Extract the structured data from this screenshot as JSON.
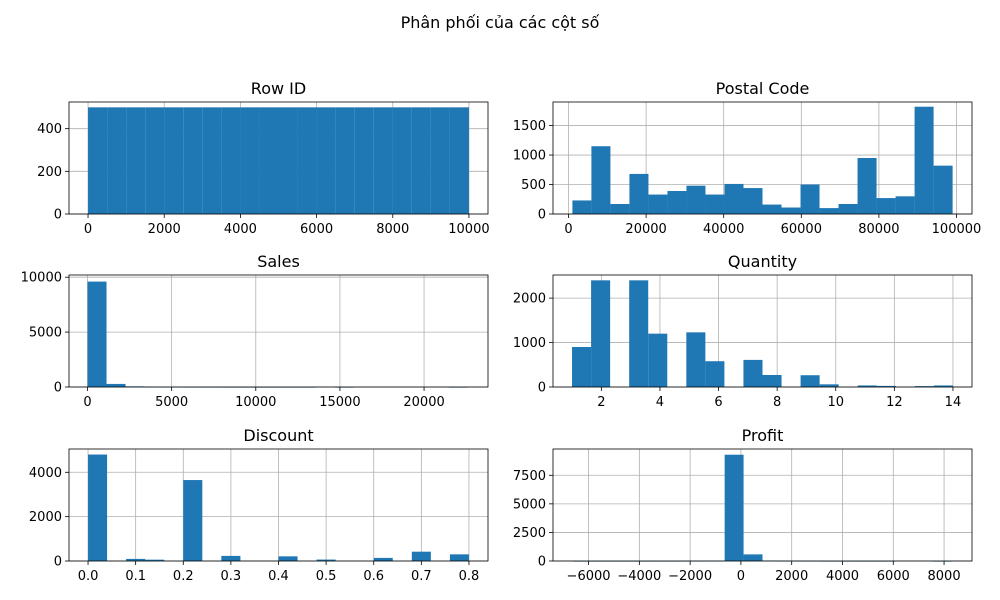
{
  "figure": {
    "title": "Phân phối của các cột số"
  },
  "chart_data": [
    {
      "type": "bar",
      "title": "Row ID",
      "color": "#1f77b4",
      "grid": true,
      "xlim": [
        -500,
        10500
      ],
      "ylim": [
        0,
        525
      ],
      "xticks": [
        0,
        2000,
        4000,
        6000,
        8000,
        10000
      ],
      "yticks": [
        0,
        200,
        400
      ],
      "tick_labels_x": [
        "0",
        "2000",
        "4000",
        "6000",
        "8000",
        "10000"
      ],
      "tick_labels_y": [
        "0",
        "200",
        "400"
      ],
      "bins": [
        0,
        500,
        1000,
        1500,
        2000,
        2500,
        3000,
        3500,
        4000,
        4500,
        5000,
        5500,
        6000,
        6500,
        7000,
        7500,
        8000,
        8500,
        9000,
        9500,
        10000
      ],
      "counts": [
        500,
        500,
        500,
        500,
        500,
        500,
        500,
        500,
        500,
        500,
        500,
        500,
        500,
        500,
        500,
        500,
        500,
        500,
        500,
        500
      ]
    },
    {
      "type": "bar",
      "title": "Postal Code",
      "color": "#1f77b4",
      "grid": true,
      "xlim": [
        -4000,
        104000
      ],
      "ylim": [
        0,
        1900
      ],
      "xticks": [
        0,
        20000,
        40000,
        60000,
        80000,
        100000
      ],
      "yticks": [
        0,
        500,
        1000,
        1500
      ],
      "tick_labels_x": [
        "0",
        "20000",
        "40000",
        "60000",
        "80000",
        "100000"
      ],
      "tick_labels_y": [
        "0",
        "500",
        "1000",
        "1500"
      ],
      "bins": [
        1000,
        5900,
        10800,
        15700,
        20600,
        25500,
        30400,
        35300,
        40200,
        45100,
        50000,
        54900,
        59800,
        64700,
        69600,
        74500,
        79400,
        84300,
        89200,
        94100,
        99000
      ],
      "counts": [
        230,
        1150,
        170,
        680,
        330,
        390,
        480,
        330,
        510,
        440,
        160,
        110,
        500,
        100,
        170,
        950,
        270,
        300,
        1820,
        820
      ]
    },
    {
      "type": "bar",
      "title": "Sales",
      "color": "#1f77b4",
      "grid": true,
      "xlim": [
        -1100,
        23800
      ],
      "ylim": [
        0,
        10200
      ],
      "xticks": [
        0,
        5000,
        10000,
        15000,
        20000
      ],
      "yticks": [
        0,
        5000,
        10000
      ],
      "tick_labels_x": [
        "0",
        "5000",
        "10000",
        "15000",
        "20000"
      ],
      "tick_labels_y": [
        "0",
        "5000",
        "10000"
      ],
      "bins": [
        0,
        1130,
        2260,
        3390,
        4520,
        5650,
        6780,
        7910,
        9040,
        10170,
        11300,
        12430,
        13560,
        14690,
        15820,
        16950,
        18080,
        19210,
        20340,
        21470,
        22600
      ],
      "counts": [
        9600,
        280,
        60,
        20,
        10,
        6,
        4,
        2,
        2,
        1,
        1,
        1,
        0,
        1,
        0,
        0,
        0,
        0,
        0,
        1
      ]
    },
    {
      "type": "bar",
      "title": "Quantity",
      "color": "#1f77b4",
      "grid": true,
      "xlim": [
        0.35,
        14.65
      ],
      "ylim": [
        0,
        2520
      ],
      "xticks": [
        2,
        4,
        6,
        8,
        10,
        12,
        14
      ],
      "yticks": [
        0,
        1000,
        2000
      ],
      "tick_labels_x": [
        "2",
        "4",
        "6",
        "8",
        "10",
        "12",
        "14"
      ],
      "tick_labels_y": [
        "0",
        "1000",
        "2000"
      ],
      "bins": [
        1,
        1.65,
        2.3,
        2.95,
        3.6,
        4.25,
        4.9,
        5.55,
        6.2,
        6.85,
        7.5,
        8.15,
        8.8,
        9.45,
        10.1,
        10.75,
        11.4,
        12.05,
        12.7,
        13.35,
        14
      ],
      "counts": [
        900,
        2400,
        0,
        2400,
        1200,
        0,
        1230,
        580,
        0,
        610,
        270,
        0,
        265,
        60,
        0,
        35,
        25,
        0,
        20,
        35
      ]
    },
    {
      "type": "bar",
      "title": "Discount",
      "color": "#1f77b4",
      "grid": true,
      "xlim": [
        -0.04,
        0.84
      ],
      "ylim": [
        0,
        5050
      ],
      "xticks": [
        0.0,
        0.1,
        0.2,
        0.3,
        0.4,
        0.5,
        0.6,
        0.7,
        0.8
      ],
      "yticks": [
        0,
        2000,
        4000
      ],
      "tick_labels_x": [
        "0.0",
        "0.1",
        "0.2",
        "0.3",
        "0.4",
        "0.5",
        "0.6",
        "0.7",
        "0.8"
      ],
      "tick_labels_y": [
        "0",
        "2000",
        "4000"
      ],
      "bins": [
        0,
        0.04,
        0.08,
        0.12,
        0.16,
        0.2,
        0.24,
        0.28,
        0.32,
        0.36,
        0.4,
        0.44,
        0.48,
        0.52,
        0.56,
        0.6,
        0.64,
        0.68,
        0.72,
        0.76,
        0.8
      ],
      "counts": [
        4800,
        0,
        95,
        60,
        0,
        3650,
        0,
        230,
        0,
        0,
        210,
        0,
        65,
        0,
        0,
        140,
        0,
        420,
        0,
        300
      ]
    },
    {
      "type": "bar",
      "title": "Profit",
      "color": "#1f77b4",
      "grid": true,
      "xlim": [
        -7400,
        9100
      ],
      "ylim": [
        0,
        9800
      ],
      "xticks": [
        -6000,
        -4000,
        -2000,
        0,
        2000,
        4000,
        6000,
        8000
      ],
      "yticks": [
        0,
        2500,
        5000,
        7500
      ],
      "tick_labels_x": [
        "−6000",
        "−4000",
        "−2000",
        "0",
        "2000",
        "4000",
        "6000",
        "8000"
      ],
      "tick_labels_y": [
        "0",
        "2500",
        "5000",
        "7500"
      ],
      "bins": [
        -6600,
        -5855,
        -5110,
        -4365,
        -3620,
        -2875,
        -2130,
        -1385,
        -640,
        105,
        850,
        1595,
        2340,
        3085,
        3830,
        4575,
        5320,
        6065,
        6810,
        7555,
        8300
      ],
      "counts": [
        1,
        1,
        1,
        1,
        2,
        3,
        8,
        20,
        9300,
        580,
        40,
        15,
        6,
        3,
        2,
        1,
        1,
        0,
        0,
        1
      ]
    }
  ]
}
